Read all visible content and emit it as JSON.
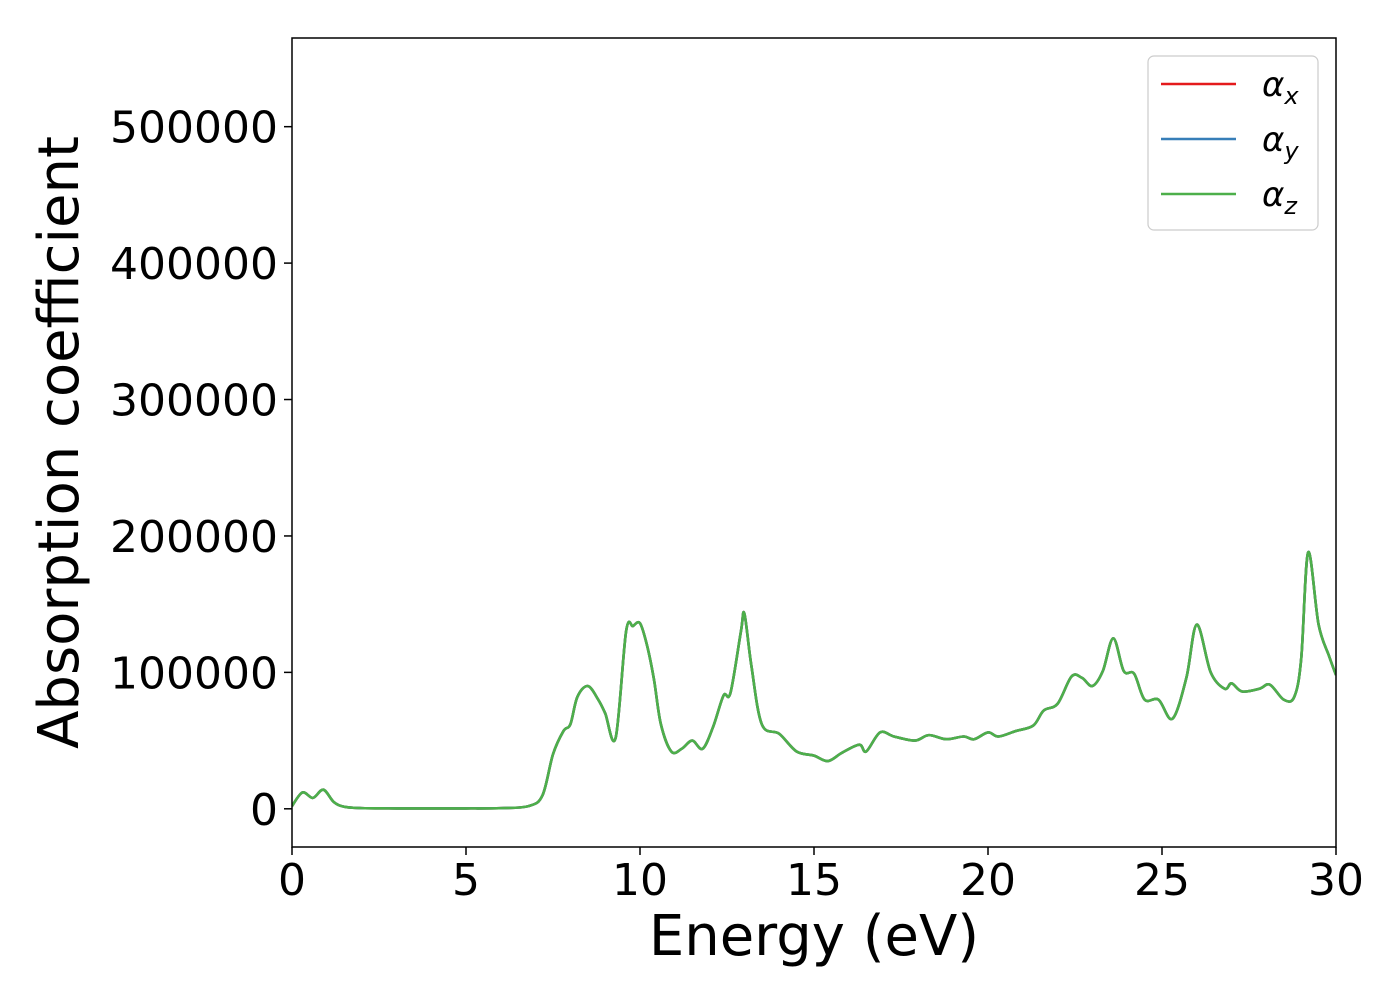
{
  "chart_data": {
    "type": "line",
    "xlabel": "Energy (eV)",
    "ylabel": "Absorption coefficient",
    "xlim": [
      0,
      30
    ],
    "ylim": [
      -28000,
      565000
    ],
    "xticks": [
      0,
      5,
      10,
      15,
      20,
      25,
      30
    ],
    "yticks": [
      0,
      100000,
      200000,
      300000,
      400000,
      500000
    ],
    "legend_position": "top-right",
    "grid": false,
    "series": [
      {
        "name": "α",
        "subscript": "x",
        "color": "#e41a1c",
        "x": [
          0,
          0.3,
          0.6,
          0.9,
          1.2,
          1.5,
          2,
          3,
          4,
          5,
          6,
          6.8,
          7.2,
          7.5,
          7.8,
          8.0,
          8.2,
          8.5,
          8.8,
          9.0,
          9.3,
          9.6,
          9.8,
          10.0,
          10.2,
          10.4,
          10.6,
          10.9,
          11.2,
          11.5,
          11.8,
          12.1,
          12.4,
          12.6,
          12.9,
          13.0,
          13.2,
          13.5,
          14.0,
          14.5,
          15.0,
          15.4,
          15.8,
          16.3,
          16.5,
          16.9,
          17.3,
          17.9,
          18.3,
          18.8,
          19.3,
          19.6,
          20.0,
          20.3,
          20.8,
          21.3,
          21.6,
          22.0,
          22.4,
          22.7,
          23.0,
          23.3,
          23.6,
          23.9,
          24.2,
          24.5,
          24.9,
          25.3,
          25.7,
          26.0,
          26.4,
          26.8,
          27.0,
          27.3,
          27.8,
          28.1,
          28.5,
          28.8,
          29.0,
          29.2,
          29.5,
          29.8,
          30.0
        ],
        "y": [
          2000,
          12000,
          8000,
          14000,
          5000,
          1500,
          500,
          300,
          300,
          300,
          500,
          2000,
          10000,
          40000,
          57000,
          62000,
          82000,
          90000,
          80000,
          70000,
          52000,
          130000,
          134000,
          136000,
          120000,
          95000,
          62000,
          42000,
          44000,
          50000,
          44000,
          60000,
          83000,
          85000,
          130000,
          143000,
          105000,
          62000,
          55000,
          42000,
          39000,
          35000,
          41000,
          47000,
          42000,
          56000,
          53000,
          50000,
          54000,
          51000,
          53000,
          51000,
          56000,
          53000,
          57000,
          61000,
          72000,
          77000,
          97000,
          96000,
          90000,
          101000,
          125000,
          101000,
          99000,
          80000,
          80000,
          66000,
          96000,
          135000,
          100000,
          88000,
          92000,
          86000,
          88000,
          91000,
          80000,
          82000,
          110000,
          188000,
          135000,
          112000,
          98000
        ]
      },
      {
        "name": "α",
        "subscript": "y",
        "color": "#377eb8",
        "x": [
          0,
          0.3,
          0.6,
          0.9,
          1.2,
          1.5,
          2,
          3,
          4,
          5,
          6,
          6.8,
          7.2,
          7.5,
          7.8,
          8.0,
          8.2,
          8.5,
          8.8,
          9.0,
          9.3,
          9.6,
          9.8,
          10.0,
          10.2,
          10.4,
          10.6,
          10.9,
          11.2,
          11.5,
          11.8,
          12.1,
          12.4,
          12.6,
          12.9,
          13.0,
          13.2,
          13.5,
          14.0,
          14.5,
          15.0,
          15.4,
          15.8,
          16.3,
          16.5,
          16.9,
          17.3,
          17.9,
          18.3,
          18.8,
          19.3,
          19.6,
          20.0,
          20.3,
          20.8,
          21.3,
          21.6,
          22.0,
          22.4,
          22.7,
          23.0,
          23.3,
          23.6,
          23.9,
          24.2,
          24.5,
          24.9,
          25.3,
          25.7,
          26.0,
          26.4,
          26.8,
          27.0,
          27.3,
          27.8,
          28.1,
          28.5,
          28.8,
          29.0,
          29.2,
          29.5,
          29.8,
          30.0
        ],
        "y": [
          2000,
          12000,
          8000,
          14000,
          5000,
          1500,
          500,
          300,
          300,
          300,
          500,
          2000,
          10000,
          40000,
          57000,
          62000,
          82000,
          90000,
          80000,
          70000,
          52000,
          130000,
          134000,
          136000,
          120000,
          95000,
          62000,
          42000,
          44000,
          50000,
          44000,
          60000,
          83000,
          85000,
          130000,
          143000,
          105000,
          62000,
          55000,
          42000,
          39000,
          35000,
          41000,
          47000,
          42000,
          56000,
          53000,
          50000,
          54000,
          51000,
          53000,
          51000,
          56000,
          53000,
          57000,
          61000,
          72000,
          77000,
          97000,
          96000,
          90000,
          101000,
          125000,
          101000,
          99000,
          80000,
          80000,
          66000,
          96000,
          135000,
          100000,
          88000,
          92000,
          86000,
          88000,
          91000,
          80000,
          82000,
          110000,
          188000,
          135000,
          112000,
          98000
        ]
      },
      {
        "name": "α",
        "subscript": "z",
        "color": "#4daf4a",
        "x": [
          0,
          0.3,
          0.6,
          0.9,
          1.2,
          1.5,
          2,
          3,
          4,
          5,
          6,
          6.8,
          7.2,
          7.5,
          7.8,
          8.0,
          8.2,
          8.5,
          8.8,
          9.0,
          9.3,
          9.6,
          9.8,
          10.0,
          10.2,
          10.4,
          10.6,
          10.9,
          11.2,
          11.5,
          11.8,
          12.1,
          12.4,
          12.6,
          12.9,
          13.0,
          13.2,
          13.5,
          14.0,
          14.5,
          15.0,
          15.4,
          15.8,
          16.3,
          16.5,
          16.9,
          17.3,
          17.9,
          18.3,
          18.8,
          19.3,
          19.6,
          20.0,
          20.3,
          20.8,
          21.3,
          21.6,
          22.0,
          22.4,
          22.7,
          23.0,
          23.3,
          23.6,
          23.9,
          24.2,
          24.5,
          24.9,
          25.3,
          25.7,
          26.0,
          26.4,
          26.8,
          27.0,
          27.3,
          27.8,
          28.1,
          28.5,
          28.8,
          29.0,
          29.2,
          29.5,
          29.8,
          30.0
        ],
        "y": [
          2000,
          12000,
          8000,
          14000,
          5000,
          1500,
          500,
          300,
          300,
          300,
          500,
          2000,
          10000,
          40000,
          57000,
          62000,
          82000,
          90000,
          80000,
          70000,
          52000,
          130000,
          134000,
          136000,
          120000,
          95000,
          62000,
          42000,
          44000,
          50000,
          44000,
          60000,
          83000,
          85000,
          130000,
          143000,
          105000,
          62000,
          55000,
          42000,
          39000,
          35000,
          41000,
          47000,
          42000,
          56000,
          53000,
          50000,
          54000,
          51000,
          53000,
          51000,
          56000,
          53000,
          57000,
          61000,
          72000,
          77000,
          97000,
          96000,
          90000,
          101000,
          125000,
          101000,
          99000,
          80000,
          80000,
          66000,
          96000,
          135000,
          100000,
          88000,
          92000,
          86000,
          88000,
          91000,
          80000,
          82000,
          110000,
          188000,
          135000,
          112000,
          98000
        ]
      }
    ]
  }
}
